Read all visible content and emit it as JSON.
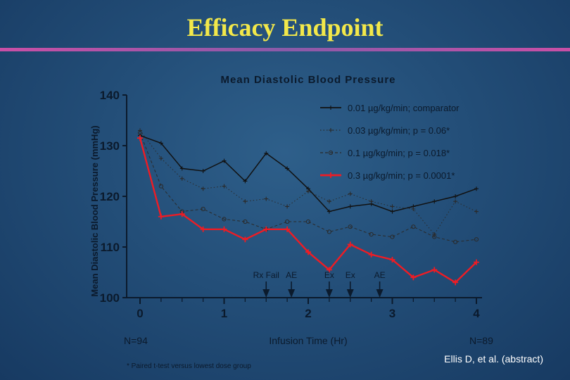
{
  "slide": {
    "title": "Efficacy Endpoint",
    "credit": "Ellis D, et al. (abstract)",
    "accent_color": "#f2e84a",
    "rule_color": "#c94fa6"
  },
  "chart_data": {
    "type": "line",
    "title": "Mean Diastolic Blood Pressure",
    "xlabel": "Infusion Time (Hr)",
    "ylabel": "Mean Diastolic Blood Pressure (mmHg)",
    "xlim": [
      0,
      4
    ],
    "ylim": [
      100,
      140
    ],
    "x_ticks": [
      0,
      1,
      2,
      3,
      4
    ],
    "y_ticks": [
      100,
      110,
      120,
      130,
      140
    ],
    "grid": false,
    "legend_position": "top-right",
    "x": [
      0,
      0.25,
      0.5,
      0.75,
      1.0,
      1.25,
      1.5,
      1.75,
      2.0,
      2.25,
      2.5,
      2.75,
      3.0,
      3.25,
      3.5,
      3.75,
      4.0
    ],
    "series": [
      {
        "name": "0.01 µg/kg/min; comparator",
        "color": "#111111",
        "style": "solid",
        "marker": "+",
        "values": [
          132,
          130.5,
          125.5,
          125,
          127,
          123,
          128.5,
          125.5,
          121.5,
          117,
          118,
          118.5,
          117,
          118,
          119,
          120,
          121.5
        ]
      },
      {
        "name": "0.03 µg/kg/min; p = 0.06*",
        "color": "#2a2a2a",
        "style": "dotted",
        "marker": "+",
        "values": [
          133,
          127.5,
          123.5,
          121.5,
          122,
          119,
          119.5,
          118,
          121,
          119,
          120.5,
          119,
          118,
          117.5,
          112.5,
          119,
          117
        ]
      },
      {
        "name": "0.1  µg/kg/min; p = 0.018*",
        "color": "#2a2a2a",
        "style": "dashed",
        "marker": "o",
        "values": [
          132.5,
          122,
          117,
          117.5,
          115.5,
          115,
          113.5,
          115,
          115,
          113,
          114,
          112.5,
          112,
          114,
          112,
          111,
          111.5
        ]
      },
      {
        "name": "0.3  µg/kg/min; p = 0.0001*",
        "color": "#ee1c24",
        "style": "solid",
        "marker": "x",
        "values": [
          131.5,
          116,
          116.5,
          113.5,
          113.5,
          111.5,
          113.5,
          113.5,
          109,
          105.5,
          110.5,
          108.5,
          107.5,
          104,
          105.5,
          103,
          107
        ]
      }
    ],
    "annotations": [
      {
        "x": 1.5,
        "label": "Rx Fail"
      },
      {
        "x": 1.8,
        "label": "AE"
      },
      {
        "x": 2.25,
        "label": "Ex"
      },
      {
        "x": 2.5,
        "label": "Ex"
      },
      {
        "x": 2.85,
        "label": "AE"
      }
    ],
    "n_labels": {
      "start": "N=94",
      "end": "N=89"
    },
    "footnote": "* Paired t-test versus lowest dose group"
  }
}
